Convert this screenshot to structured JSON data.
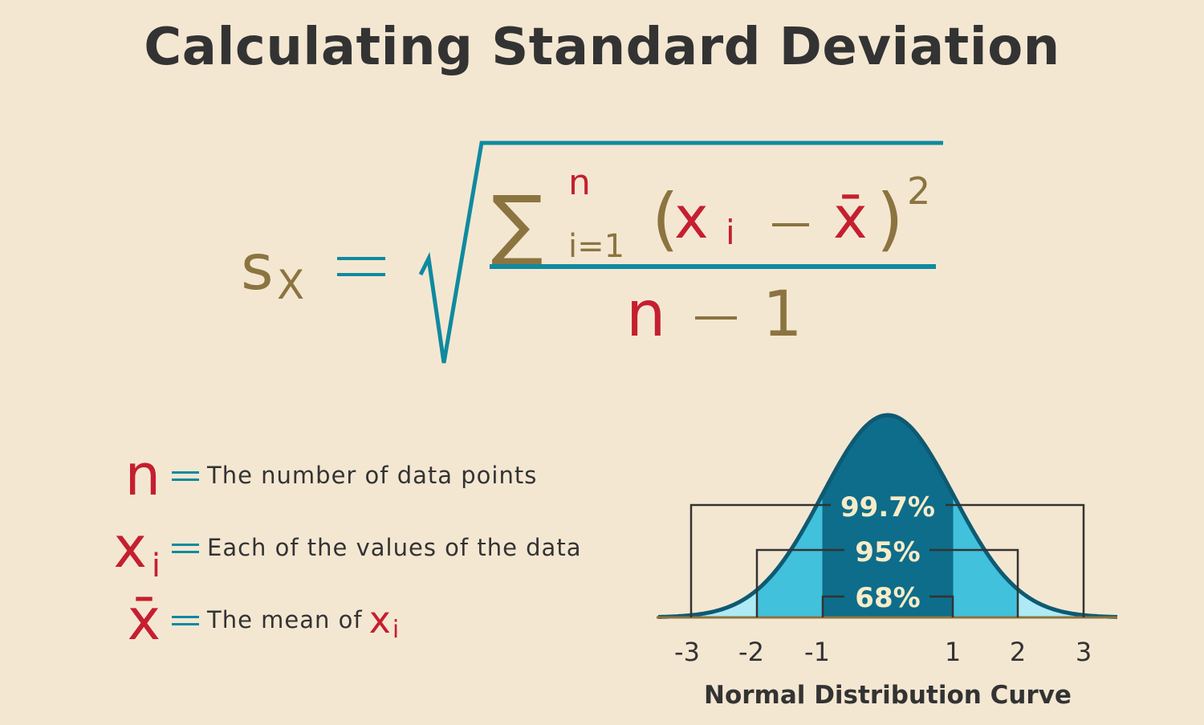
{
  "title": "Calculating Standard Deviation",
  "formula": {
    "lhs": "s",
    "lhs_sub": "X",
    "sum_sign": "∑",
    "sum_upper": "n",
    "sum_lower": "i=1",
    "open_paren": "(",
    "xi": "x",
    "xi_sub": "i",
    "minus": "−",
    "xbar": "x̄",
    "close_paren": ")",
    "exponent": "2",
    "denominator_n": "n",
    "denominator_minus": "−",
    "denominator_one": "1",
    "equals": "="
  },
  "legend": [
    {
      "symbol": "n",
      "description": "The number of data points"
    },
    {
      "symbol": "x",
      "symbol_sub": "i",
      "description": "Each of the values of the data"
    },
    {
      "symbol": "x̄",
      "description": "The mean of",
      "tail_symbol": "x",
      "tail_sub": "i"
    }
  ],
  "chart": {
    "caption": "Normal Distribution Curve",
    "labels": {
      "p99": "99.7%",
      "p95": "95%",
      "p68": "68%"
    },
    "ticks": [
      "-3",
      "-2",
      "-1",
      "1",
      "2",
      "3"
    ]
  },
  "colors": {
    "title": "#333333",
    "gold": "#8b7440",
    "red": "#c51f30",
    "teal": "#0f8a9f",
    "dark_blue": "#0e6d8a",
    "mid_blue": "#41c1dc",
    "light_blue": "#aeeaf5",
    "background": "#f4e7d2"
  }
}
